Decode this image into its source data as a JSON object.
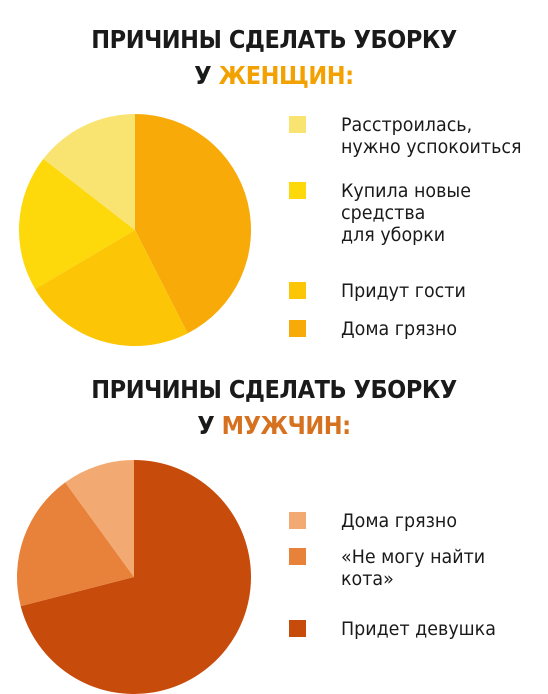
{
  "chart_data": [
    {
      "type": "pie",
      "title_line1": "ПРИЧИНЫ СДЕЛАТЬ УБОРКУ",
      "title_prefix": "У",
      "title_highlight": "ЖЕНЩИН:",
      "series": [
        {
          "name": "Расстроилась,\nнужно успокоиться",
          "value": 14.5,
          "color": "#f9e471"
        },
        {
          "name": "Купила новые\nсредства\nдля уборки",
          "value": 19,
          "color": "#fdd80a"
        },
        {
          "name": "Придут гости",
          "value": 24,
          "color": "#fcc607"
        },
        {
          "name": "Дома грязно",
          "value": 42.5,
          "color": "#f8aa08"
        }
      ]
    },
    {
      "type": "pie",
      "title_line1": "ПРИЧИНЫ СДЕЛАТЬ УБОРКУ",
      "title_prefix": "У",
      "title_highlight": "МУЖЧИН:",
      "series": [
        {
          "name": "Дома грязно",
          "value": 10,
          "color": "#f3aa72"
        },
        {
          "name": "«Не могу найти\nкота»",
          "value": 19,
          "color": "#e8813a"
        },
        {
          "name": "Придет девушка",
          "value": 71,
          "color": "#c74b0b"
        }
      ]
    }
  ]
}
